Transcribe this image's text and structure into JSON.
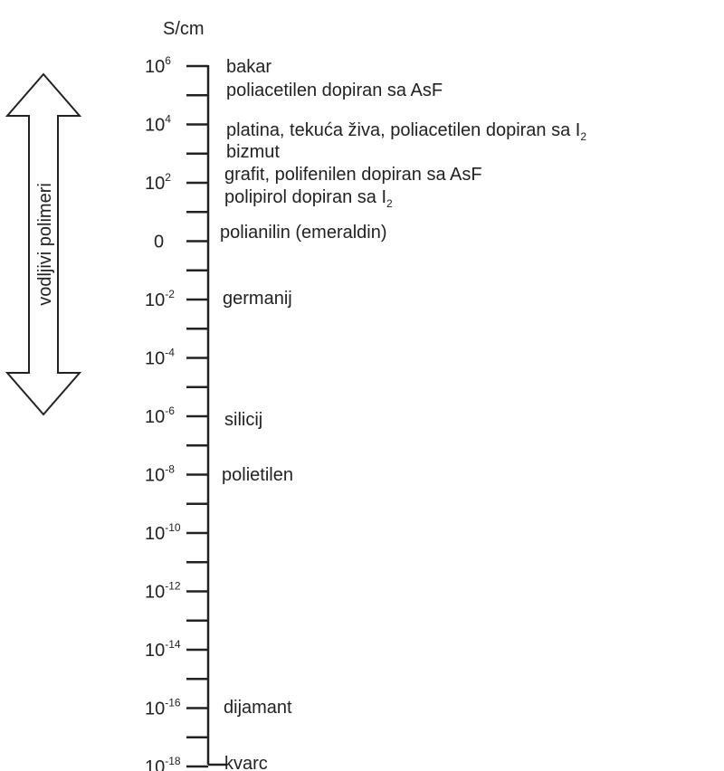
{
  "unit": "S/cm",
  "arrow_label": "vodljivi polimeri",
  "ticks": [
    {
      "base": "10",
      "exp": "6"
    },
    {
      "base": "10",
      "exp": "4"
    },
    {
      "base": "10",
      "exp": "2"
    },
    {
      "base": "0"
    },
    {
      "base": "10",
      "exp": "-2"
    },
    {
      "base": "10",
      "exp": "-4"
    },
    {
      "base": "10",
      "exp": "-6"
    },
    {
      "base": "10",
      "exp": "-8"
    },
    {
      "base": "10",
      "exp": "-10"
    },
    {
      "base": "10",
      "exp": "-12"
    },
    {
      "base": "10",
      "exp": "-14"
    },
    {
      "base": "10",
      "exp": "-16"
    },
    {
      "base": "10",
      "exp": "-18"
    }
  ],
  "materials": [
    {
      "text": "bakar"
    },
    {
      "text": "poliacetilen dopiran sa AsF"
    },
    {
      "text": "platina, tekuća živa,  poliacetilen dopiran sa I",
      "sub": "2"
    },
    {
      "text": "bizmut"
    },
    {
      "text": "grafit,  polifenilen dopiran sa AsF"
    },
    {
      "text": "polipirol dopiran sa I",
      "sub": "2"
    },
    {
      "text": "polianilin (emeraldin)"
    },
    {
      "text": "germanij"
    },
    {
      "text": "silicij"
    },
    {
      "text": "polietilen"
    },
    {
      "text": "dijamant"
    },
    {
      "text": "kvarc"
    }
  ]
}
